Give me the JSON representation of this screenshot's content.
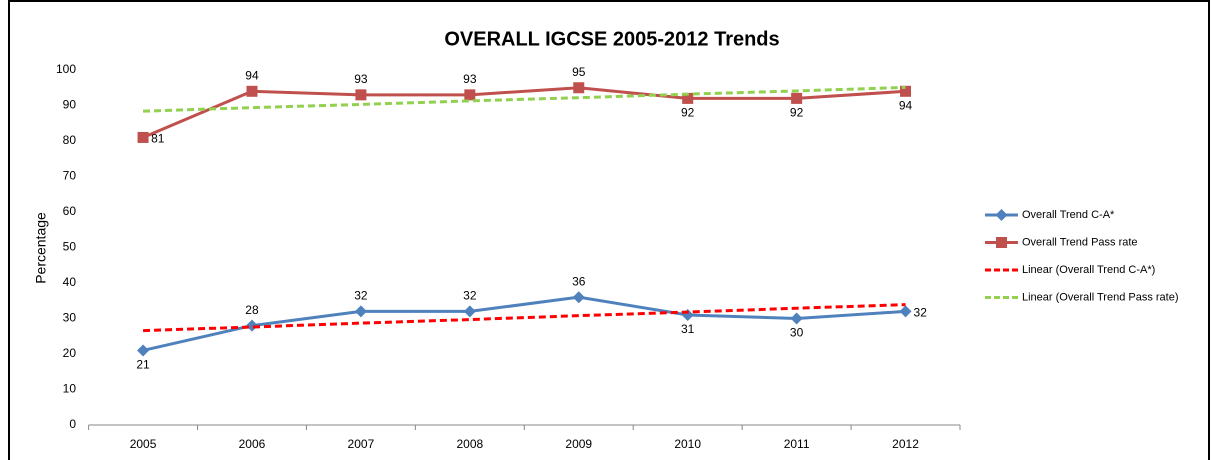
{
  "chart_data": {
    "type": "line",
    "title": "OVERALL IGCSE 2005-2012 Trends",
    "y_label": "Percentage",
    "categories": [
      "2005",
      "2006",
      "2007",
      "2008",
      "2009",
      "2010",
      "2011",
      "2012"
    ],
    "series": [
      {
        "name": "Overall Trend C-A*",
        "color": "#4f81bd",
        "marker": "diamond",
        "values": [
          21,
          28,
          32,
          32,
          36,
          31,
          30,
          32
        ],
        "labels": true
      },
      {
        "name": "Overall Trend Pass rate",
        "color": "#c0504d",
        "marker": "square",
        "values": [
          81,
          94,
          93,
          93,
          95,
          92,
          92,
          94
        ],
        "labels": true
      },
      {
        "name": "Linear (Overall Trend C-A*)",
        "color": "#ff0000",
        "dashed": true,
        "values": [
          26.6,
          27.6,
          28.7,
          29.7,
          30.8,
          31.8,
          32.9,
          33.9
        ]
      },
      {
        "name": "Linear (Overall Trend Pass rate)",
        "color": "#92d050",
        "dashed": true,
        "values": [
          88.4,
          89.4,
          90.3,
          91.3,
          92.2,
          93.2,
          94.1,
          95.1
        ]
      }
    ],
    "ylim": [
      0,
      100
    ],
    "yticks": [
      0,
      10,
      20,
      30,
      40,
      50,
      60,
      70,
      80,
      90,
      100
    ],
    "grid": false,
    "legend": "right"
  }
}
